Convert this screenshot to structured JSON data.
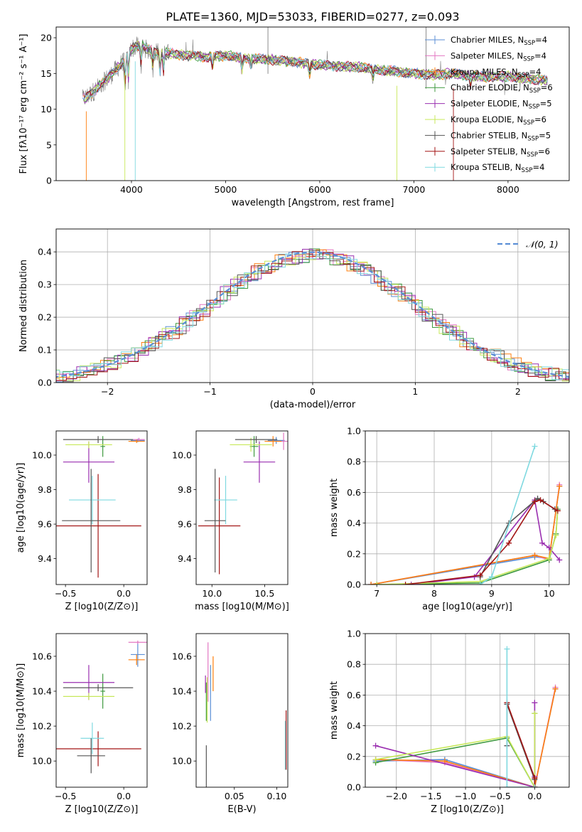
{
  "figure": {
    "title": "PLATE=1360, MJD=53033, FIBERID=0277, z=0.093"
  },
  "colors": {
    "Chabrier MILES": "#5b8fd6",
    "Salpeter MILES": "#e377c2",
    "Kroupa MILES": "#ff7f0e",
    "Chabrier ELODIE": "#3f9a3f",
    "Salpeter ELODIE": "#9a2fb0",
    "Kroupa ELODIE": "#c7e85a",
    "Chabrier STELIB": "#555555",
    "Salpeter STELIB": "#a31515",
    "Kroupa STELIB": "#7fd9e0",
    "normal": "#5b8fd6"
  },
  "chart_data": [
    {
      "id": "spectrum",
      "type": "line",
      "xlabel": "wavelength [Angstrom, rest frame]",
      "ylabel": "Flux [fλ10⁻¹⁷ erg cm⁻² s⁻¹ A⁻¹]",
      "xlim": [
        3200,
        8650
      ],
      "ylim": [
        0,
        21.5
      ],
      "xticks": [
        4000,
        5000,
        6000,
        7000,
        8000
      ],
      "yticks": [
        0,
        5,
        10,
        15,
        20
      ],
      "grid": false,
      "legend_position": "upper right",
      "legend": [
        "Chabrier MILES, N_SSP=4",
        "Salpeter MILES, N_SSP=4",
        "Kroupa MILES, N_SSP=4",
        "Chabrier ELODIE, N_SSP=6",
        "Salpeter ELODIE, N_SSP=5",
        "Kroupa ELODIE, N_SSP=6",
        "Chabrier STELIB, N_SSP=5",
        "Salpeter STELIB, N_SSP=6",
        "Kroupa STELIB, N_SSP=4"
      ],
      "continuum": {
        "x": [
          3500,
          3600,
          3700,
          3800,
          3900,
          4000,
          4100,
          4200,
          4400,
          4600,
          4800,
          5000,
          5200,
          5400,
          5600,
          5800,
          6000,
          6200,
          6400,
          6600,
          6800,
          7000,
          7200,
          7400,
          7600,
          7800,
          8000,
          8200,
          8400
        ],
        "y": [
          11.5,
          12.5,
          13.8,
          15.0,
          16.5,
          18.5,
          19.0,
          18.2,
          17.8,
          17.5,
          17.3,
          17.5,
          17.2,
          17.0,
          16.8,
          16.5,
          16.2,
          16.0,
          15.9,
          15.5,
          15.3,
          15.0,
          14.8,
          15.0,
          14.6,
          14.5,
          14.6,
          14.3,
          14.0
        ]
      }
    },
    {
      "id": "residual",
      "type": "histogram",
      "xlabel": "(data-model)/error",
      "ylabel": "Normed distribution",
      "xlim": [
        -2.5,
        2.5
      ],
      "ylim": [
        0,
        0.47
      ],
      "xticks": [
        -2,
        -1,
        0,
        1,
        2
      ],
      "yticks": [
        0.0,
        0.1,
        0.2,
        0.3,
        0.4
      ],
      "grid": true,
      "legend_position": "upper right",
      "legend": [
        "𝒩(0, 1)"
      ],
      "bin_width": 0.1
    },
    {
      "id": "age-vs-Z",
      "type": "errorbar",
      "xlabel": "Z [log10(Z/Z⊙)]",
      "ylabel": "age  [log10(age/yr)]",
      "xlim": [
        -0.58,
        0.2
      ],
      "ylim": [
        9.25,
        10.14
      ],
      "xticks": [
        -0.5,
        0.0
      ],
      "yticks": [
        9.4,
        9.6,
        9.8,
        10.0
      ],
      "points": [
        {
          "model": "Chabrier MILES",
          "x": 0.12,
          "y": 10.085,
          "xerr": 0.06,
          "yerr": 0.01
        },
        {
          "model": "Salpeter MILES",
          "x": 0.13,
          "y": 10.09,
          "xerr": 0.05,
          "yerr": 0.01
        },
        {
          "model": "Kroupa MILES",
          "x": 0.11,
          "y": 10.08,
          "xerr": 0.07,
          "yerr": 0.01
        },
        {
          "model": "Chabrier ELODIE",
          "x": -0.18,
          "y": 10.05,
          "xerr": 0.02,
          "yerr": 0.06
        },
        {
          "model": "Salpeter ELODIE",
          "x": -0.3,
          "y": 9.96,
          "xerr": 0.22,
          "yerr": 0.12
        },
        {
          "model": "Kroupa ELODIE",
          "x": -0.3,
          "y": 10.06,
          "xerr": 0.2,
          "yerr": 0.02
        },
        {
          "model": "Chabrier STELIB",
          "x": -0.22,
          "y": 10.09,
          "xerr": 0.3,
          "yerr": 0.02
        },
        {
          "model": "Salpeter STELIB",
          "x": -0.22,
          "y": 9.59,
          "xerr": 0.37,
          "yerr": 0.3
        },
        {
          "model": "Kroupa STELIB",
          "x": -0.27,
          "y": 9.74,
          "xerr": 0.2,
          "yerr": 0.14
        },
        {
          "model": "Chabrier STELIB",
          "x": -0.28,
          "y": 9.62,
          "xerr": 0.25,
          "yerr": 0.3
        }
      ]
    },
    {
      "id": "age-vs-mass",
      "type": "errorbar",
      "xlabel": "mass [log10(M/M⊙)]",
      "ylabel": "",
      "xlim": [
        9.85,
        10.72
      ],
      "ylim": [
        9.25,
        10.14
      ],
      "xticks": [
        10.0,
        10.5
      ],
      "yticks": [
        9.4,
        9.6,
        9.8,
        10.0
      ],
      "points": [
        {
          "model": "Chabrier MILES",
          "x": 10.61,
          "y": 10.085,
          "xerr": 0.08,
          "yerr": 0.02
        },
        {
          "model": "Salpeter MILES",
          "x": 10.68,
          "y": 10.08,
          "xerr": 0.06,
          "yerr": 0.05
        },
        {
          "model": "Kroupa MILES",
          "x": 10.58,
          "y": 10.08,
          "xerr": 0.08,
          "yerr": 0.03
        },
        {
          "model": "Chabrier ELODIE",
          "x": 10.4,
          "y": 10.05,
          "xerr": 0.04,
          "yerr": 0.06
        },
        {
          "model": "Salpeter ELODIE",
          "x": 10.45,
          "y": 9.96,
          "xerr": 0.15,
          "yerr": 0.12
        },
        {
          "model": "Kroupa ELODIE",
          "x": 10.37,
          "y": 10.06,
          "xerr": 0.2,
          "yerr": 0.04
        },
        {
          "model": "Chabrier STELIB",
          "x": 10.42,
          "y": 10.09,
          "xerr": 0.2,
          "yerr": 0.02
        },
        {
          "model": "Salpeter STELIB",
          "x": 10.07,
          "y": 9.59,
          "xerr": 0.2,
          "yerr": 0.28
        },
        {
          "model": "Kroupa STELIB",
          "x": 10.13,
          "y": 9.74,
          "xerr": 0.11,
          "yerr": 0.14
        },
        {
          "model": "Chabrier STELIB",
          "x": 10.03,
          "y": 9.62,
          "xerr": 0.1,
          "yerr": 0.3
        }
      ]
    },
    {
      "id": "weight-vs-age",
      "type": "line",
      "xlabel": "age  [log10(age/yr)]",
      "ylabel": "mass weight",
      "xlim": [
        6.8,
        10.35
      ],
      "ylim": [
        0,
        1.0
      ],
      "xticks": [
        7,
        8,
        9,
        10
      ],
      "yticks": [
        0.0,
        0.2,
        0.4,
        0.6,
        0.8,
        1.0
      ],
      "grid": true,
      "series": [
        {
          "model": "Chabrier MILES",
          "x": [
            6.9,
            9.75,
            10.0,
            10.18
          ],
          "y": [
            0.0,
            0.18,
            0.17,
            0.64
          ]
        },
        {
          "model": "Salpeter MILES",
          "x": [
            6.9,
            9.75,
            10.0,
            10.18
          ],
          "y": [
            0.0,
            0.19,
            0.16,
            0.65
          ]
        },
        {
          "model": "Kroupa MILES",
          "x": [
            6.9,
            9.75,
            10.0,
            10.18
          ],
          "y": [
            0.0,
            0.19,
            0.17,
            0.64
          ]
        },
        {
          "model": "Chabrier ELODIE",
          "x": [
            7.0,
            8.8,
            10.0,
            10.12,
            10.15
          ],
          "y": [
            0.0,
            0.01,
            0.16,
            0.33,
            0.49
          ]
        },
        {
          "model": "Salpeter ELODIE",
          "x": [
            7.6,
            8.7,
            9.75,
            9.88,
            10.0,
            10.18
          ],
          "y": [
            0.0,
            0.05,
            0.55,
            0.27,
            0.24,
            0.16
          ]
        },
        {
          "model": "Kroupa ELODIE",
          "x": [
            7.0,
            8.8,
            10.0,
            10.12,
            10.15
          ],
          "y": [
            0.0,
            0.02,
            0.17,
            0.32,
            0.48
          ]
        },
        {
          "model": "Chabrier STELIB",
          "x": [
            8.8,
            9.3,
            9.8,
            9.9,
            10.1
          ],
          "y": [
            0.05,
            0.4,
            0.56,
            0.54,
            0.49
          ]
        },
        {
          "model": "Salpeter STELIB",
          "x": [
            7.5,
            8.8,
            9.3,
            9.75,
            9.85,
            10.15
          ],
          "y": [
            0.0,
            0.06,
            0.27,
            0.54,
            0.55,
            0.48
          ]
        },
        {
          "model": "Kroupa STELIB",
          "x": [
            8.8,
            9.0,
            9.75
          ],
          "y": [
            0.0,
            0.05,
            0.9
          ]
        }
      ]
    },
    {
      "id": "mass-vs-Z",
      "type": "errorbar",
      "xlabel": "Z [log10(Z/Z⊙)]",
      "ylabel": "mass [log10(M/M⊙)]",
      "xlim": [
        -0.58,
        0.2
      ],
      "ylim": [
        9.85,
        10.73
      ],
      "xticks": [
        -0.5,
        0.0
      ],
      "yticks": [
        10.0,
        10.2,
        10.4,
        10.6
      ],
      "points": [
        {
          "model": "Chabrier MILES",
          "x": 0.12,
          "y": 10.61,
          "xerr": 0.06,
          "yerr": 0.07
        },
        {
          "model": "Salpeter MILES",
          "x": 0.12,
          "y": 10.68,
          "xerr": 0.08,
          "yerr": 0.01
        },
        {
          "model": "Kroupa MILES",
          "x": 0.11,
          "y": 10.58,
          "xerr": 0.07,
          "yerr": 0.03
        },
        {
          "model": "Chabrier ELODIE",
          "x": -0.18,
          "y": 10.4,
          "xerr": 0.02,
          "yerr": 0.1
        },
        {
          "model": "Salpeter ELODIE",
          "x": -0.3,
          "y": 10.45,
          "xerr": 0.22,
          "yerr": 0.1
        },
        {
          "model": "Kroupa ELODIE",
          "x": -0.3,
          "y": 10.37,
          "xerr": 0.22,
          "yerr": 0.02
        },
        {
          "model": "Chabrier STELIB",
          "x": -0.22,
          "y": 10.42,
          "xerr": 0.3,
          "yerr": 0.02
        },
        {
          "model": "Salpeter STELIB",
          "x": -0.22,
          "y": 10.07,
          "xerr": 0.37,
          "yerr": 0.1
        },
        {
          "model": "Kroupa STELIB",
          "x": -0.27,
          "y": 10.13,
          "xerr": 0.1,
          "yerr": 0.09
        },
        {
          "model": "Chabrier STELIB",
          "x": -0.28,
          "y": 10.03,
          "xerr": 0.12,
          "yerr": 0.1
        }
      ]
    },
    {
      "id": "mass-vs-EBV",
      "type": "errorbar",
      "xlabel": "E(B-V)",
      "ylabel": "",
      "xlim": [
        0.005,
        0.113
      ],
      "ylim": [
        9.85,
        10.73
      ],
      "xticks": [
        0.05,
        0.1
      ],
      "yticks": [
        10.0,
        10.2,
        10.4,
        10.6
      ],
      "points": [
        {
          "model": "Chabrier MILES",
          "x": 0.022,
          "y": 10.39,
          "xerr": 0,
          "yerr": 0.16
        },
        {
          "model": "Salpeter MILES",
          "x": 0.019,
          "y": 10.51,
          "xerr": 0,
          "yerr": 0.17
        },
        {
          "model": "Kroupa MILES",
          "x": 0.025,
          "y": 10.5,
          "xerr": 0,
          "yerr": 0.1
        },
        {
          "model": "Chabrier ELODIE",
          "x": 0.017,
          "y": 10.34,
          "xerr": 0,
          "yerr": 0.11
        },
        {
          "model": "Salpeter ELODIE",
          "x": 0.016,
          "y": 10.44,
          "xerr": 0,
          "yerr": 0.05
        },
        {
          "model": "Kroupa ELODIE",
          "x": 0.018,
          "y": 10.35,
          "xerr": 0,
          "yerr": 0.13
        },
        {
          "model": "Chabrier STELIB",
          "x": 0.017,
          "y": 9.95,
          "xerr": 0,
          "yerr": 0.14
        },
        {
          "model": "Salpeter STELIB",
          "x": 0.111,
          "y": 10.12,
          "xerr": 0,
          "yerr": 0.17
        },
        {
          "model": "Kroupa STELIB",
          "x": 0.11,
          "y": 10.09,
          "xerr": 0,
          "yerr": 0.14
        }
      ]
    },
    {
      "id": "weight-vs-Z",
      "type": "line",
      "xlabel": "Z [log10(Z/Z⊙)]",
      "ylabel": "mass weight",
      "xlim": [
        -2.45,
        0.5
      ],
      "ylim": [
        0,
        1.0
      ],
      "xticks": [
        -2.0,
        -1.5,
        -1.0,
        -0.5,
        0.0
      ],
      "yticks": [
        0.0,
        0.2,
        0.4,
        0.6,
        0.8,
        1.0
      ],
      "grid": true,
      "series": [
        {
          "model": "Chabrier MILES",
          "x": [
            -2.3,
            -1.3,
            0.0,
            0.3
          ],
          "y": [
            0.17,
            0.18,
            0.0,
            0.64
          ]
        },
        {
          "model": "Salpeter MILES",
          "x": [
            -2.3,
            -1.3,
            0.0,
            0.3
          ],
          "y": [
            0.18,
            0.16,
            0.0,
            0.65
          ]
        },
        {
          "model": "Kroupa MILES",
          "x": [
            -2.3,
            -1.3,
            0.0,
            0.3
          ],
          "y": [
            0.18,
            0.17,
            0.0,
            0.64
          ]
        },
        {
          "model": "Chabrier ELODIE",
          "x": [
            -2.3,
            -0.4,
            0.0,
            0.0
          ],
          "y": [
            0.16,
            0.32,
            0.0,
            0.48
          ]
        },
        {
          "model": "Salpeter ELODIE",
          "x": [
            -2.3,
            0.0,
            0.0,
            0.0
          ],
          "y": [
            0.27,
            0.0,
            0.07,
            0.55
          ]
        },
        {
          "model": "Kroupa ELODIE",
          "x": [
            -2.3,
            -0.4,
            0.0,
            0.0
          ],
          "y": [
            0.18,
            0.33,
            0.0,
            0.48
          ]
        },
        {
          "model": "Chabrier STELIB",
          "x": [
            -0.4,
            -0.4,
            0.0,
            0.0
          ],
          "y": [
            0.27,
            0.54,
            0.05,
            0.0
          ]
        },
        {
          "model": "Salpeter STELIB",
          "x": [
            -0.4,
            0.0,
            0.0,
            0.0
          ],
          "y": [
            0.55,
            0.06,
            0.0,
            0.0
          ]
        },
        {
          "model": "Kroupa STELIB",
          "x": [
            -0.4,
            -0.4,
            0.0
          ],
          "y": [
            0.9,
            0.0,
            0.0
          ]
        }
      ]
    }
  ]
}
